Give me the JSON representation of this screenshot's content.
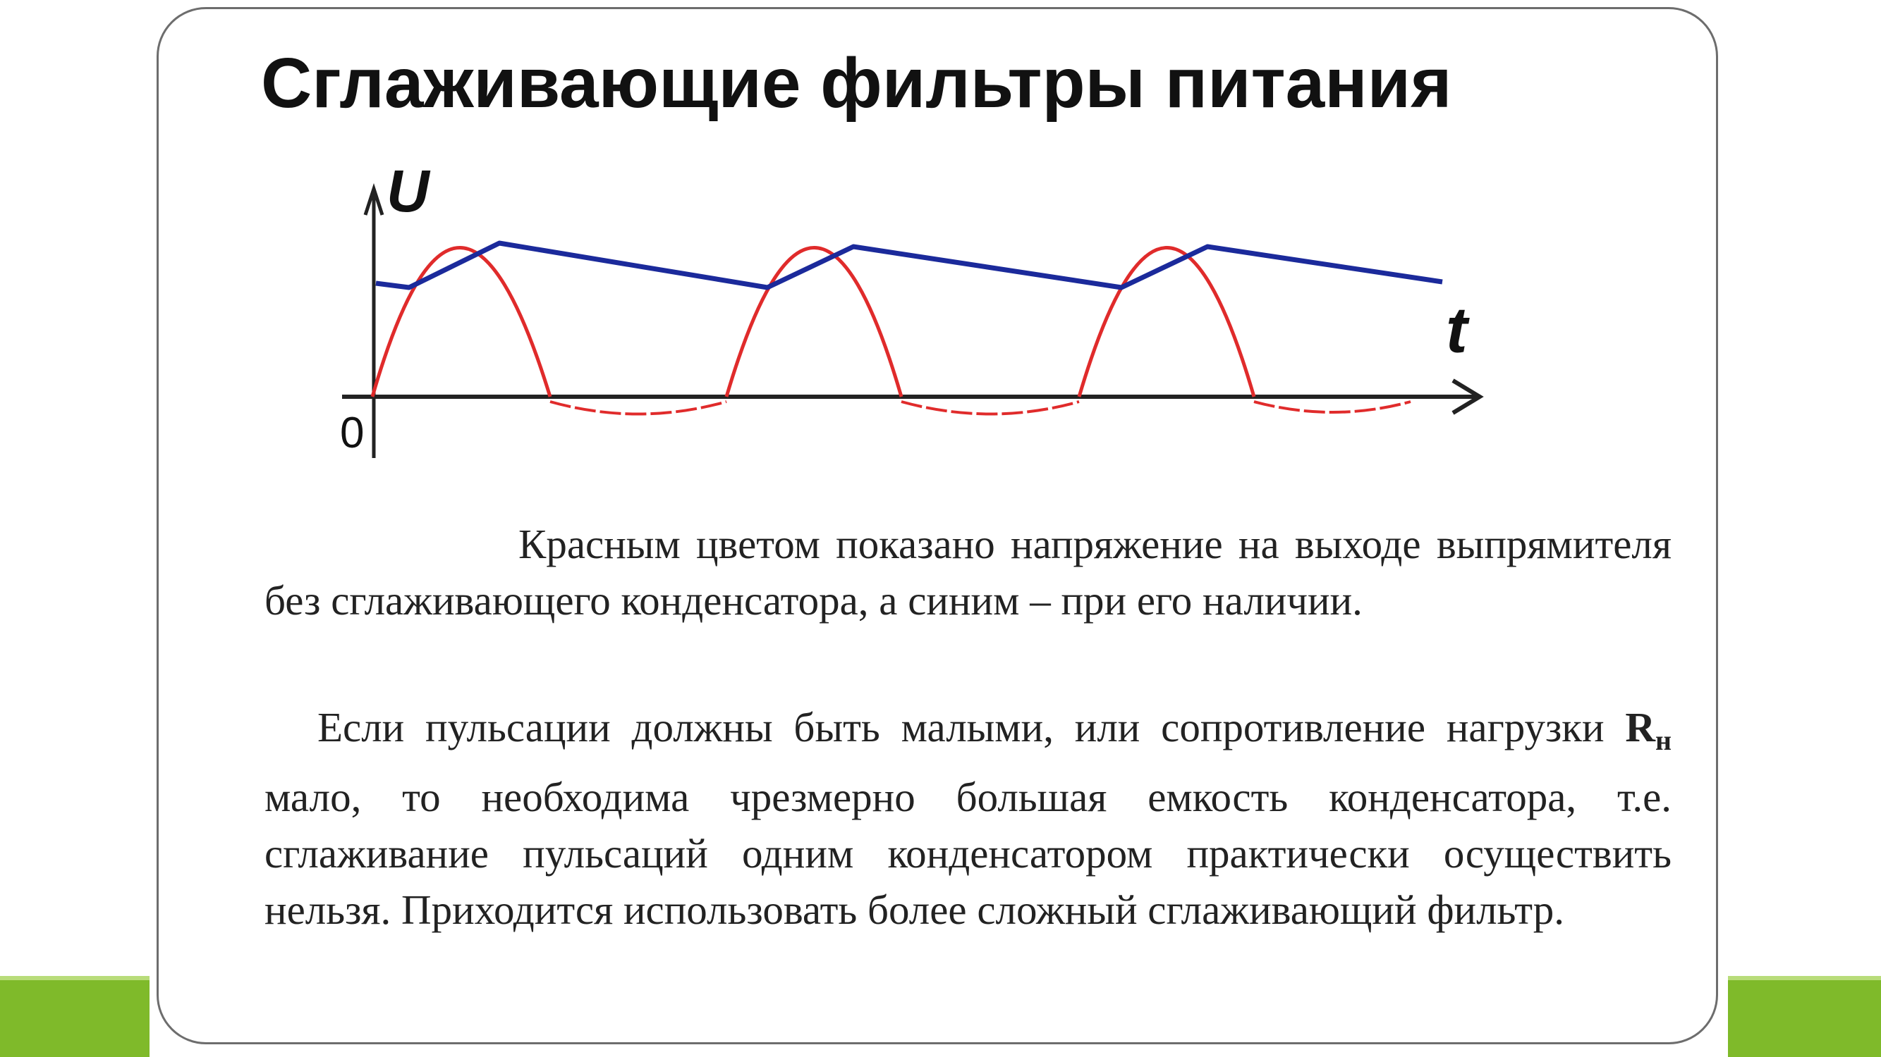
{
  "slide": {
    "title": "Сглаживающие фильтры питания",
    "colors": {
      "accent_green": "#7fba2a",
      "red_curve": "#e02b2b",
      "blue_curve": "#1b2a9b",
      "axis": "#222222"
    }
  },
  "diagram": {
    "y_axis_label": "U",
    "x_axis_label": "t",
    "origin_label": "0",
    "red_series": "Красным цветом показано напряжение на выходе выпрямителя без сглаживающего конденсатора",
    "blue_series": "а синим – при его наличии"
  },
  "text": {
    "paragraph1": "Красным цветом показано напряжение на выходе выпрямителя без сглаживающего конденсатора, а синим – при его наличии.",
    "paragraph2_part1": "Если пульсации должны быть малыми, или сопротивление нагрузки",
    "r_symbol": "R",
    "r_subscript": "н",
    "paragraph2_part2": "мало, то необходима чрезмерно большая емкость конденсатора, т.е. сглаживание пульсаций одним конденсатором практически осуществить нельзя. Приходится использовать более сложный сглаживающий фильтр."
  }
}
